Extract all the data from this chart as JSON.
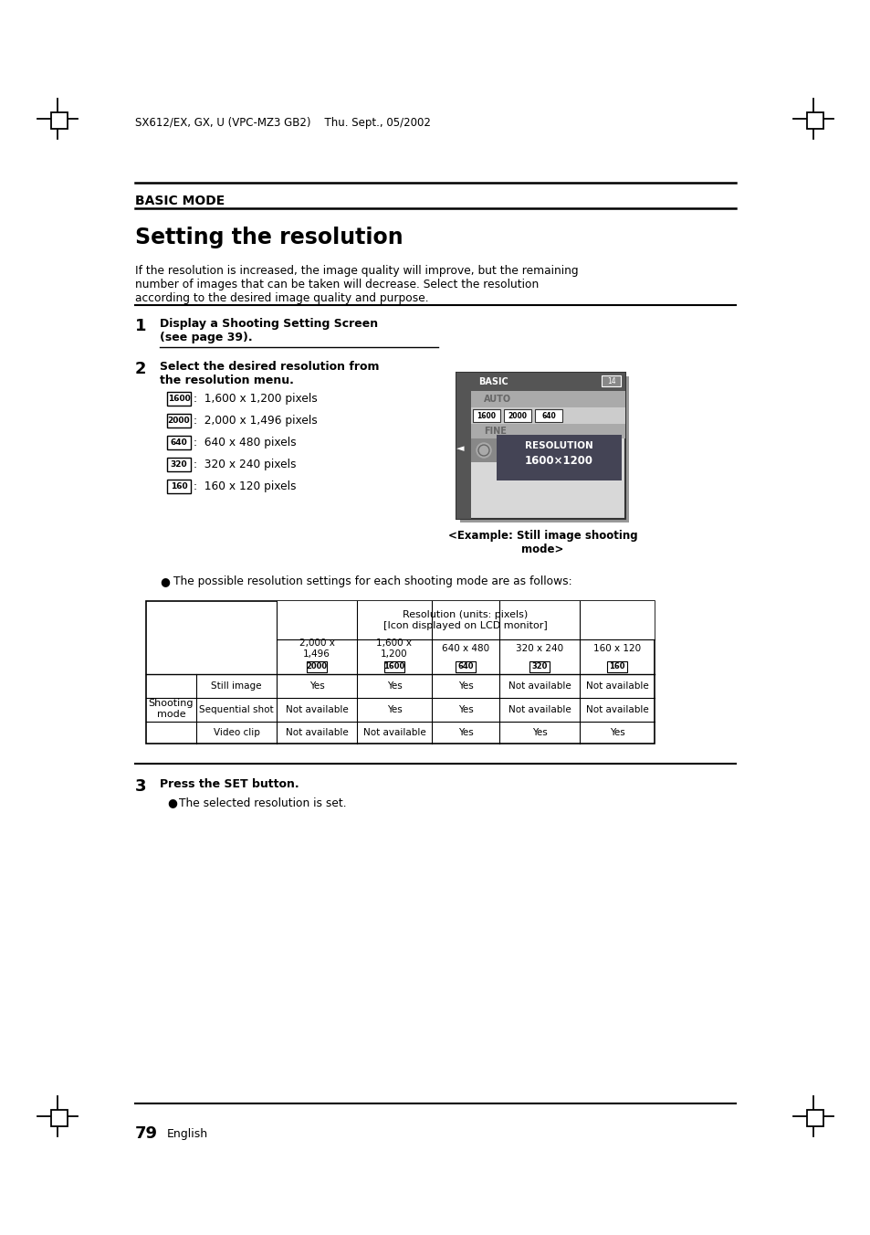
{
  "bg_color": "#ffffff",
  "header_text": "SX612/EX, GX, U (VPC-MZ3 GB2)    Thu. Sept., 05/2002",
  "section_label": "BASIC MODE",
  "title": "Setting the resolution",
  "intro_text": "If the resolution is increased, the image quality will improve, but the remaining\nnumber of images that can be taken will decrease. Select the resolution\naccording to the desired image quality and purpose.",
  "step1_num": "1",
  "step1_bold": "Display a Shooting Setting Screen\n(see page 39).",
  "step2_num": "2",
  "step2_bold": "Select the desired resolution from\nthe resolution menu.",
  "resolutions": [
    {
      "icon": "1600",
      "text": ":  1,600 x 1,200 pixels"
    },
    {
      "icon": "2000",
      "text": ":  2,000 x 1,496 pixels"
    },
    {
      "icon": "640",
      "text": ":  640 x 480 pixels"
    },
    {
      "icon": "320",
      "text": ":  320 x 240 pixels"
    },
    {
      "icon": "160",
      "text": ":  160 x 120 pixels"
    }
  ],
  "bullet_text": "The possible resolution settings for each shooting mode are as follows:",
  "example_caption": "<Example: Still image shooting\nmode>",
  "col_header_texts": [
    "2,000 x\n1,496",
    "1,600 x\n1,200",
    "640 x 480",
    "320 x 240",
    "160 x 120"
  ],
  "col_icon_texts": [
    "2000",
    "1600",
    "640",
    "320",
    "160"
  ],
  "row_label_group": "Shooting\nmode",
  "row_labels": [
    "Still image",
    "Sequential shot",
    "Video clip"
  ],
  "table_data": [
    [
      "Yes",
      "Yes",
      "Yes",
      "Not available",
      "Not available"
    ],
    [
      "Not available",
      "Yes",
      "Yes",
      "Not available",
      "Not available"
    ],
    [
      "Not available",
      "Not available",
      "Yes",
      "Yes",
      "Yes"
    ]
  ],
  "step3_num": "3",
  "step3_bold": "Press the SET button.",
  "step3_bullet": "The selected resolution is set.",
  "page_num": "79",
  "page_lang": "English"
}
